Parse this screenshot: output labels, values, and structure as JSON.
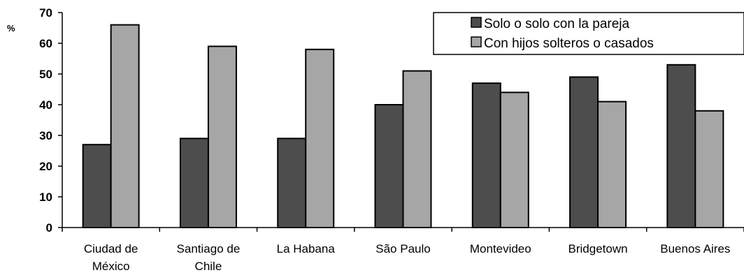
{
  "chart_data": {
    "type": "bar",
    "ylabel": "%",
    "ylim": [
      0,
      70
    ],
    "yticks": [
      0,
      10,
      20,
      30,
      40,
      50,
      60,
      70
    ],
    "categories": [
      [
        "Ciudad de",
        "México"
      ],
      [
        "Santiago de",
        "Chile"
      ],
      [
        "La Habana"
      ],
      [
        "São Paulo"
      ],
      [
        "Montevideo"
      ],
      [
        "Bridgetown"
      ],
      [
        "Buenos Aires"
      ]
    ],
    "series": [
      {
        "name": "Solo o solo con la pareja",
        "color": "#4d4d4d",
        "values": [
          27,
          29,
          29,
          40,
          47,
          49,
          53
        ]
      },
      {
        "name": "Con hijos solteros o casados",
        "color": "#a6a6a6",
        "values": [
          66,
          59,
          58,
          51,
          44,
          41,
          38
        ]
      }
    ],
    "grid": false,
    "legend_position": "top-right"
  }
}
